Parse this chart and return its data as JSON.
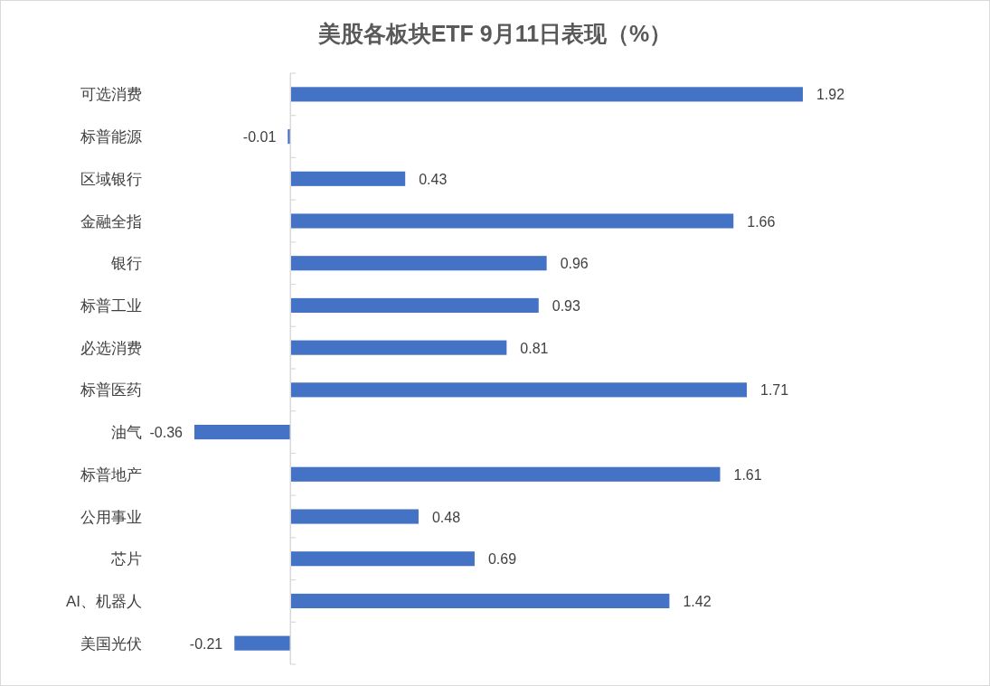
{
  "chart_data": {
    "type": "bar",
    "orientation": "horizontal",
    "title": "美股各板块ETF 9月11日表现（%）",
    "categories": [
      "可选消费",
      "标普能源",
      "区域银行",
      "金融全指",
      "银行",
      "标普工业",
      "必选消费",
      "标普医药",
      "油气",
      "标普地产",
      "公用事业",
      "芯片",
      "AI、机器人",
      "美国光伏"
    ],
    "values": [
      1.92,
      -0.01,
      0.43,
      1.66,
      0.96,
      0.93,
      0.81,
      1.71,
      -0.36,
      1.61,
      0.48,
      0.69,
      1.42,
      -0.21
    ],
    "color": "#4472c4",
    "data_labels": true,
    "tick_labels": "y"
  }
}
